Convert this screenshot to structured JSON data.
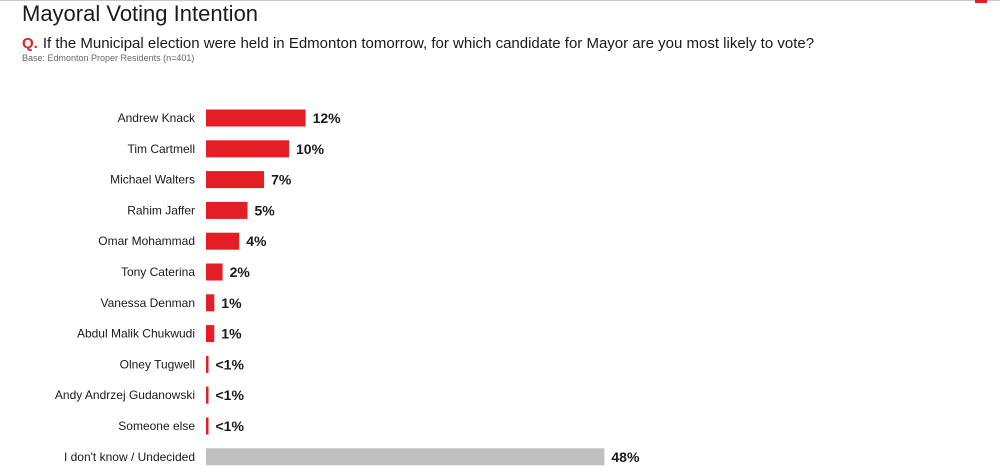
{
  "header": {
    "title": "Mayoral Voting Intention",
    "question_prefix": "Q.",
    "question_text": "If the Municipal election were held in Edmonton tomorrow, for which candidate for Mayor are you most likely to vote?",
    "base_note": "Base: Edmonton Proper Residents (n=401)"
  },
  "colors": {
    "accent": "#e31e24",
    "undecided": "#c0c0c0"
  },
  "chart_data": {
    "type": "bar",
    "orientation": "horizontal",
    "categories": [
      "Andrew Knack",
      "Tim Cartmell",
      "Michael Walters",
      "Rahim Jaffer",
      "Omar Mohammad",
      "Tony Caterina",
      "Vanessa Denman",
      "Abdul Malik Chukwudi",
      "Olney Tugwell",
      "Andy Andrzej Gudanowski",
      "Someone else",
      "I don't know / Undecided"
    ],
    "values": [
      12,
      10,
      7,
      5,
      4,
      2,
      1,
      1,
      0.3,
      0.3,
      0.3,
      48
    ],
    "value_labels": [
      "12%",
      "10%",
      "7%",
      "5%",
      "4%",
      "2%",
      "1%",
      "1%",
      "<1%",
      "<1%",
      "<1%",
      "48%"
    ],
    "bar_colors": [
      "#e31e24",
      "#e31e24",
      "#e31e24",
      "#e31e24",
      "#e31e24",
      "#e31e24",
      "#e31e24",
      "#e31e24",
      "#e31e24",
      "#e31e24",
      "#e31e24",
      "#c0c0c0"
    ],
    "title": "",
    "xlabel": "",
    "ylabel": "",
    "xlim": [
      0,
      60
    ],
    "grid": false,
    "legend": "none"
  }
}
